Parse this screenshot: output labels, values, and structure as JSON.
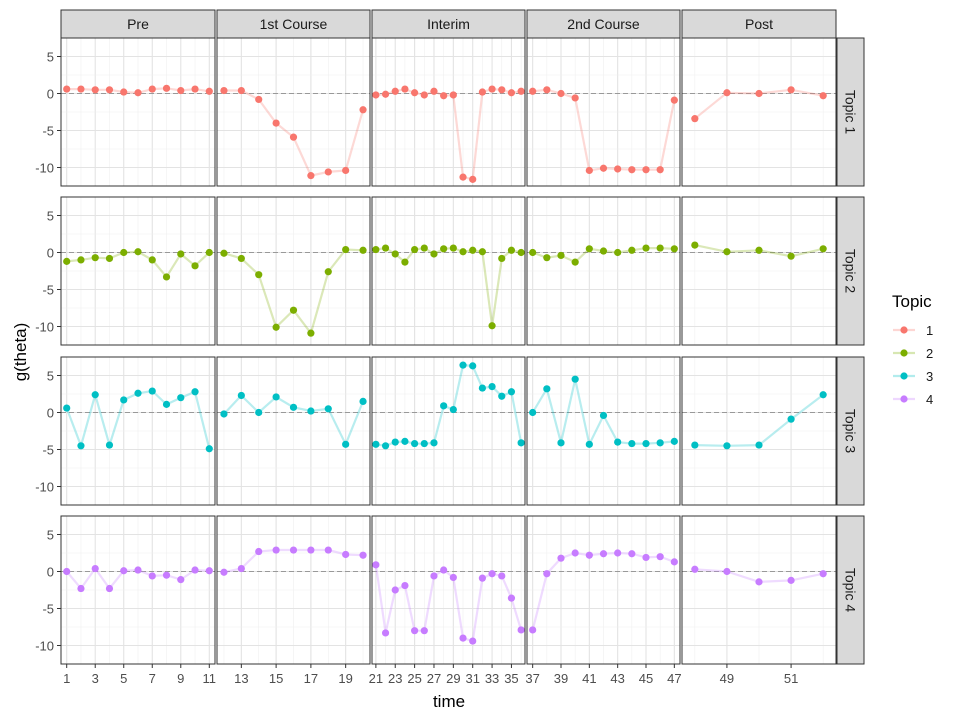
{
  "chart_data": {
    "type": "line",
    "xlabel": "time",
    "ylabel": "g(theta)",
    "ylim": [
      -12.5,
      7.5
    ],
    "y_ticks": [
      -10,
      -5,
      0,
      5
    ],
    "reference_line": 0,
    "columns": [
      {
        "label": "Pre",
        "x_ticks": [
          1,
          3,
          5,
          7,
          9,
          11
        ]
      },
      {
        "label": "1st Course",
        "x_ticks": [
          13,
          15,
          17,
          19
        ]
      },
      {
        "label": "Interim",
        "x_ticks": [
          21,
          23,
          25,
          27,
          29,
          31,
          33,
          35
        ]
      },
      {
        "label": "2nd Course",
        "x_ticks": [
          37,
          39,
          41,
          43,
          45,
          47
        ]
      },
      {
        "label": "Post",
        "x_ticks": [
          49,
          51
        ]
      }
    ],
    "rows": [
      {
        "label": "Topic 1",
        "color": "#F8766D"
      },
      {
        "label": "Topic 2",
        "color": "#7CAE00"
      },
      {
        "label": "Topic 3",
        "color": "#00BFC4"
      },
      {
        "label": "Topic 4",
        "color": "#C77CFF"
      }
    ],
    "legend": {
      "title": "Topic",
      "position": "right",
      "items": [
        {
          "label": "1",
          "color": "#F8766D"
        },
        {
          "label": "2",
          "color": "#7CAE00"
        },
        {
          "label": "3",
          "color": "#00BFC4"
        },
        {
          "label": "4",
          "color": "#C77CFF"
        }
      ]
    },
    "series": [
      {
        "topic": "1",
        "data": [
          [
            [
              1,
              0.6
            ],
            [
              2,
              0.6
            ],
            [
              3,
              0.5
            ],
            [
              4,
              0.5
            ],
            [
              5,
              0.2
            ],
            [
              6,
              0.1
            ],
            [
              7,
              0.6
            ],
            [
              8,
              0.7
            ],
            [
              9,
              0.4
            ],
            [
              10,
              0.6
            ],
            [
              11,
              0.3
            ]
          ],
          [
            [
              12,
              0.4
            ],
            [
              13,
              0.4
            ],
            [
              14,
              -0.8
            ],
            [
              15,
              -4
            ],
            [
              16,
              -5.9
            ],
            [
              17,
              -11.1
            ],
            [
              18,
              -10.6
            ],
            [
              19,
              -10.4
            ],
            [
              20,
              -2.2
            ]
          ],
          [
            [
              21,
              -0.2
            ],
            [
              22,
              -0.1
            ],
            [
              23,
              0.3
            ],
            [
              24,
              0.6
            ],
            [
              25,
              0.1
            ],
            [
              26,
              -0.2
            ],
            [
              27,
              0.3
            ],
            [
              28,
              -0.3
            ],
            [
              29,
              -0.2
            ],
            [
              30,
              -11.3
            ],
            [
              31,
              -11.6
            ],
            [
              32,
              0.2
            ],
            [
              33,
              0.6
            ],
            [
              34,
              0.5
            ],
            [
              35,
              0.1
            ],
            [
              36,
              0.3
            ]
          ],
          [
            [
              37,
              0.3
            ],
            [
              38,
              0.5
            ],
            [
              39,
              0
            ],
            [
              40,
              -0.6
            ],
            [
              41,
              -10.4
            ],
            [
              42,
              -10.1
            ],
            [
              43,
              -10.2
            ],
            [
              44,
              -10.3
            ],
            [
              45,
              -10.3
            ],
            [
              46,
              -10.3
            ],
            [
              47,
              -0.9
            ]
          ],
          [
            [
              48,
              -3.4
            ],
            [
              49,
              0.1
            ],
            [
              50,
              0
            ],
            [
              51,
              0.5
            ],
            [
              52,
              -0.3
            ]
          ]
        ]
      },
      {
        "topic": "2",
        "data": [
          [
            [
              1,
              -1.2
            ],
            [
              2,
              -1
            ],
            [
              3,
              -0.7
            ],
            [
              4,
              -0.8
            ],
            [
              5,
              0
            ],
            [
              6,
              0.1
            ],
            [
              7,
              -1
            ],
            [
              8,
              -3.3
            ],
            [
              9,
              -0.2
            ],
            [
              10,
              -1.8
            ],
            [
              11,
              0
            ]
          ],
          [
            [
              12,
              -0.1
            ],
            [
              13,
              -0.8
            ],
            [
              14,
              -3
            ],
            [
              15,
              -10.1
            ],
            [
              16,
              -7.8
            ],
            [
              17,
              -10.9
            ],
            [
              18,
              -2.6
            ],
            [
              19,
              0.4
            ],
            [
              20,
              0.3
            ]
          ],
          [
            [
              21,
              0.4
            ],
            [
              22,
              0.6
            ],
            [
              23,
              -0.2
            ],
            [
              24,
              -1.3
            ],
            [
              25,
              0.4
            ],
            [
              26,
              0.6
            ],
            [
              27,
              -0.2
            ],
            [
              28,
              0.5
            ],
            [
              29,
              0.6
            ],
            [
              30,
              0.1
            ],
            [
              31,
              0.3
            ],
            [
              32,
              0.1
            ],
            [
              33,
              -9.9
            ],
            [
              34,
              -0.8
            ],
            [
              35,
              0.3
            ],
            [
              36,
              0
            ]
          ],
          [
            [
              37,
              0
            ],
            [
              38,
              -0.7
            ],
            [
              39,
              -0.4
            ],
            [
              40,
              -1.3
            ],
            [
              41,
              0.5
            ],
            [
              42,
              0.2
            ],
            [
              43,
              0
            ],
            [
              44,
              0.3
            ],
            [
              45,
              0.6
            ],
            [
              46,
              0.6
            ],
            [
              47,
              0.5
            ]
          ],
          [
            [
              48,
              1
            ],
            [
              49,
              0.1
            ],
            [
              50,
              0.3
            ],
            [
              51,
              -0.5
            ],
            [
              52,
              0.5
            ]
          ]
        ]
      },
      {
        "topic": "3",
        "data": [
          [
            [
              1,
              0.6
            ],
            [
              2,
              -4.5
            ],
            [
              3,
              2.4
            ],
            [
              4,
              -4.4
            ],
            [
              5,
              1.7
            ],
            [
              6,
              2.6
            ],
            [
              7,
              2.9
            ],
            [
              8,
              1.1
            ],
            [
              9,
              2
            ],
            [
              10,
              2.8
            ],
            [
              11,
              -4.9
            ]
          ],
          [
            [
              12,
              -0.2
            ],
            [
              13,
              2.3
            ],
            [
              14,
              0
            ],
            [
              15,
              2.1
            ],
            [
              16,
              0.7
            ],
            [
              17,
              0.2
            ],
            [
              18,
              0.5
            ],
            [
              19,
              -4.3
            ],
            [
              20,
              1.5
            ]
          ],
          [
            [
              21,
              -4.3
            ],
            [
              22,
              -4.5
            ],
            [
              23,
              -4
            ],
            [
              24,
              -3.9
            ],
            [
              25,
              -4.2
            ],
            [
              26,
              -4.2
            ],
            [
              27,
              -4.1
            ],
            [
              28,
              0.9
            ],
            [
              29,
              0.4
            ],
            [
              30,
              6.4
            ],
            [
              31,
              6.3
            ],
            [
              32,
              3.3
            ],
            [
              33,
              3.5
            ],
            [
              34,
              2.2
            ],
            [
              35,
              2.8
            ],
            [
              36,
              -4.1
            ]
          ],
          [
            [
              37,
              0
            ],
            [
              38,
              3.2
            ],
            [
              39,
              -4.1
            ],
            [
              40,
              4.5
            ],
            [
              41,
              -4.3
            ],
            [
              42,
              -0.4
            ],
            [
              43,
              -4
            ],
            [
              44,
              -4.2
            ],
            [
              45,
              -4.2
            ],
            [
              46,
              -4.1
            ],
            [
              47,
              -3.9
            ]
          ],
          [
            [
              48,
              -4.4
            ],
            [
              49,
              -4.5
            ],
            [
              50,
              -4.4
            ],
            [
              51,
              -0.9
            ],
            [
              52,
              2.4
            ]
          ]
        ]
      },
      {
        "topic": "4",
        "data": [
          [
            [
              1,
              0
            ],
            [
              2,
              -2.3
            ],
            [
              3,
              0.4
            ],
            [
              4,
              -2.3
            ],
            [
              5,
              0.1
            ],
            [
              6,
              0.2
            ],
            [
              7,
              -0.6
            ],
            [
              8,
              -0.5
            ],
            [
              9,
              -1.1
            ],
            [
              10,
              0.2
            ],
            [
              11,
              0.1
            ]
          ],
          [
            [
              12,
              -0.1
            ],
            [
              13,
              0.4
            ],
            [
              14,
              2.7
            ],
            [
              15,
              2.9
            ],
            [
              16,
              2.9
            ],
            [
              17,
              2.9
            ],
            [
              18,
              2.9
            ],
            [
              19,
              2.3
            ],
            [
              20,
              2.2
            ]
          ],
          [
            [
              21,
              0.9
            ],
            [
              22,
              -8.3
            ],
            [
              23,
              -2.5
            ],
            [
              24,
              -1.9
            ],
            [
              25,
              -8
            ],
            [
              26,
              -8
            ],
            [
              27,
              -0.6
            ],
            [
              28,
              0.2
            ],
            [
              29,
              -0.8
            ],
            [
              30,
              -9
            ],
            [
              31,
              -9.4
            ],
            [
              32,
              -0.9
            ],
            [
              33,
              -0.3
            ],
            [
              34,
              -0.6
            ],
            [
              35,
              -3.6
            ],
            [
              36,
              -7.9
            ]
          ],
          [
            [
              37,
              -7.9
            ],
            [
              38,
              -0.3
            ],
            [
              39,
              1.8
            ],
            [
              40,
              2.5
            ],
            [
              41,
              2.2
            ],
            [
              42,
              2.4
            ],
            [
              43,
              2.5
            ],
            [
              44,
              2.4
            ],
            [
              45,
              1.9
            ],
            [
              46,
              2
            ],
            [
              47,
              1.3
            ]
          ],
          [
            [
              48,
              0.3
            ],
            [
              49,
              0
            ],
            [
              50,
              -1.4
            ],
            [
              51,
              -1.2
            ],
            [
              52,
              -0.3
            ]
          ]
        ]
      }
    ]
  }
}
